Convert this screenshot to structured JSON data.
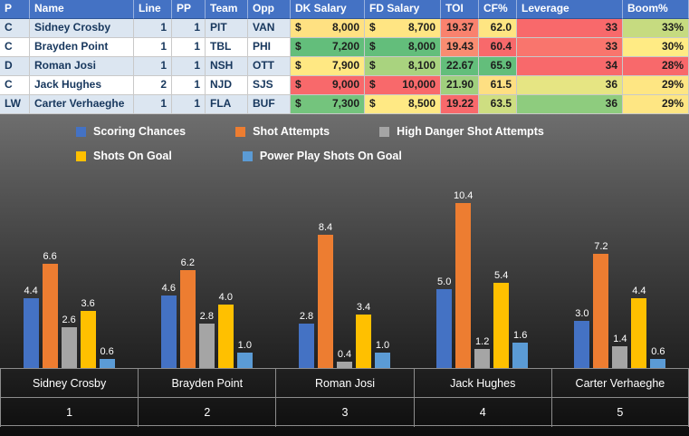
{
  "table": {
    "columns": [
      {
        "key": "p",
        "label": "P"
      },
      {
        "key": "name",
        "label": "Name"
      },
      {
        "key": "line",
        "label": "Line"
      },
      {
        "key": "pp",
        "label": "PP"
      },
      {
        "key": "team",
        "label": "Team"
      },
      {
        "key": "opp",
        "label": "Opp"
      },
      {
        "key": "dk",
        "label": "DK Salary"
      },
      {
        "key": "fd",
        "label": "FD Salary"
      },
      {
        "key": "toi",
        "label": "TOI"
      },
      {
        "key": "cf",
        "label": "CF%"
      },
      {
        "key": "lev",
        "label": "Leverage"
      },
      {
        "key": "boom",
        "label": "Boom%"
      }
    ],
    "rows": [
      {
        "p": "C",
        "name": "Sidney Crosby",
        "line": "1",
        "pp": "1",
        "team": "PIT",
        "opp": "VAN",
        "dk": "8,000",
        "fd": "8,700",
        "toi": "19.37",
        "cf": "62.0",
        "lev": "33",
        "boom": "33%",
        "colors": {
          "dk": "#FFE182",
          "fd": "#FFE583",
          "toi": "#F9826E",
          "cf": "#FEE582",
          "lev": "#F8696B",
          "boom": "#C6DB80"
        }
      },
      {
        "p": "C",
        "name": "Brayden Point",
        "line": "1",
        "pp": "1",
        "team": "TBL",
        "opp": "PHI",
        "dk": "7,200",
        "fd": "8,000",
        "toi": "19.43",
        "cf": "60.4",
        "lev": "33",
        "boom": "30%",
        "colors": {
          "dk": "#63BE7B",
          "fd": "#63BE7B",
          "toi": "#F98C71",
          "cf": "#F8696B",
          "lev": "#F9756D",
          "boom": "#FFEB84"
        }
      },
      {
        "p": "D",
        "name": "Roman Josi",
        "line": "1",
        "pp": "1",
        "team": "NSH",
        "opp": "OTT",
        "dk": "7,900",
        "fd": "8,100",
        "toi": "22.67",
        "cf": "65.9",
        "lev": "34",
        "boom": "28%",
        "colors": {
          "dk": "#FFE883",
          "fd": "#A9D37F",
          "toi": "#63BE7B",
          "cf": "#63BE7B",
          "lev": "#F8696B",
          "boom": "#F8696B"
        }
      },
      {
        "p": "C",
        "name": "Jack Hughes",
        "line": "2",
        "pp": "1",
        "team": "NJD",
        "opp": "SJS",
        "dk": "9,000",
        "fd": "10,000",
        "toi": "21.90",
        "cf": "61.5",
        "lev": "36",
        "boom": "29%",
        "colors": {
          "dk": "#F8696B",
          "fd": "#F8696B",
          "toi": "#A0D07E",
          "cf": "#FEDF82",
          "lev": "#E6E583",
          "boom": "#FEE683"
        }
      },
      {
        "p": "LW",
        "name": "Carter Verhaeghe",
        "line": "1",
        "pp": "1",
        "team": "FLA",
        "opp": "BUF",
        "dk": "7,300",
        "fd": "8,500",
        "toi": "19.22",
        "cf": "63.5",
        "lev": "36",
        "boom": "29%",
        "colors": {
          "dk": "#74C47D",
          "fd": "#FFE984",
          "toi": "#F8696B",
          "cf": "#CEDE81",
          "lev": "#8ECC7E",
          "boom": "#FEE683"
        }
      }
    ]
  },
  "chart_data": {
    "type": "bar",
    "title": "",
    "categories": [
      "Sidney Crosby",
      "Brayden Point",
      "Roman Josi",
      "Jack Hughes",
      "Carter Verhaeghe"
    ],
    "category_numbers": [
      "1",
      "2",
      "3",
      "4",
      "5"
    ],
    "series": [
      {
        "name": "Scoring Chances",
        "color": "#4472C4",
        "values": [
          4.4,
          4.6,
          2.8,
          5.0,
          3.0
        ]
      },
      {
        "name": "Shot Attempts",
        "color": "#ED7D31",
        "values": [
          6.6,
          6.2,
          8.4,
          10.4,
          7.2
        ]
      },
      {
        "name": "High Danger Shot Attempts",
        "color": "#A5A5A5",
        "values": [
          2.6,
          2.8,
          0.4,
          1.2,
          1.4
        ]
      },
      {
        "name": "Shots On Goal",
        "color": "#FFC000",
        "values": [
          3.6,
          4.0,
          3.4,
          5.4,
          4.4
        ]
      },
      {
        "name": "Power Play Shots On Goal",
        "color": "#5B9BD5",
        "values": [
          0.6,
          1.0,
          1.0,
          1.6,
          0.6
        ]
      }
    ],
    "ylim": [
      0,
      11
    ],
    "xlabel": "",
    "ylabel": "",
    "grid": false,
    "legend_position": "top"
  }
}
